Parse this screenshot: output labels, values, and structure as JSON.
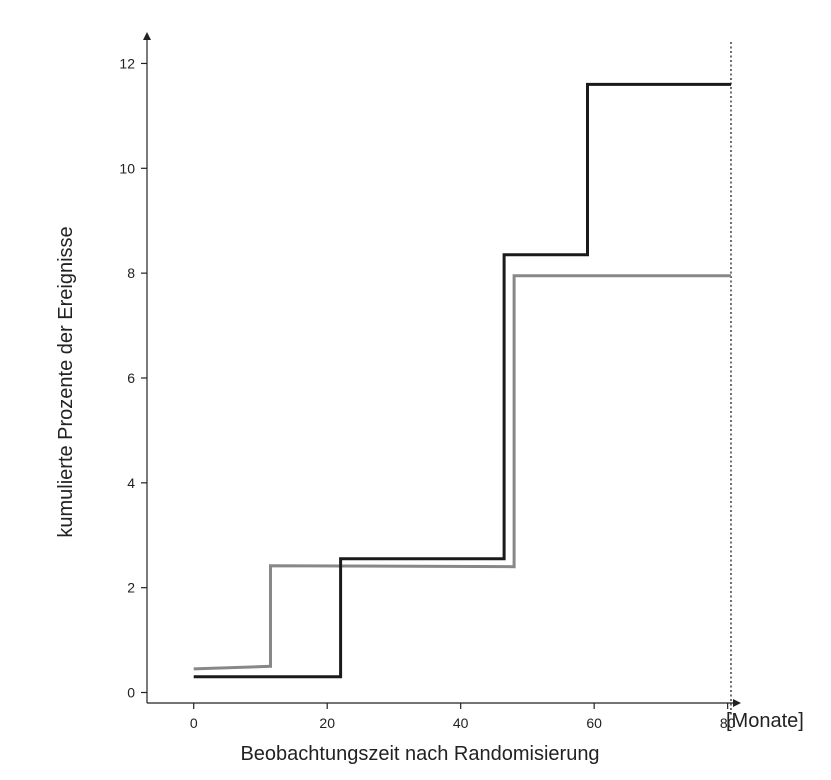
{
  "chart_data": {
    "type": "line",
    "step": true,
    "xlabel": "Beobachtungszeit nach Randomisierung",
    "ylabel": "kumulierte Prozente der Ereignisse",
    "x_unit_label": "[Monate]",
    "xlim": [
      -7,
      82
    ],
    "ylim": [
      -0.2,
      12.6
    ],
    "xticks": [
      0,
      20,
      40,
      60,
      80
    ],
    "yticks": [
      0,
      2,
      4,
      6,
      8,
      10,
      12
    ],
    "grid": false,
    "reference_line": {
      "x": 80.5,
      "style": "dotted"
    },
    "series": [
      {
        "color": "#1a1a1a",
        "points": [
          [
            0,
            0.3
          ],
          [
            22,
            0.3
          ],
          [
            22,
            2.55
          ],
          [
            46.5,
            2.55
          ],
          [
            46.5,
            8.35
          ],
          [
            59,
            8.35
          ],
          [
            59,
            11.6
          ],
          [
            80.5,
            11.6
          ]
        ]
      },
      {
        "color": "#888888",
        "points": [
          [
            0,
            0.45
          ],
          [
            11.5,
            0.5
          ],
          [
            11.5,
            2.42
          ],
          [
            48,
            2.4
          ],
          [
            48,
            7.95
          ],
          [
            80.5,
            7.95
          ]
        ]
      }
    ]
  }
}
